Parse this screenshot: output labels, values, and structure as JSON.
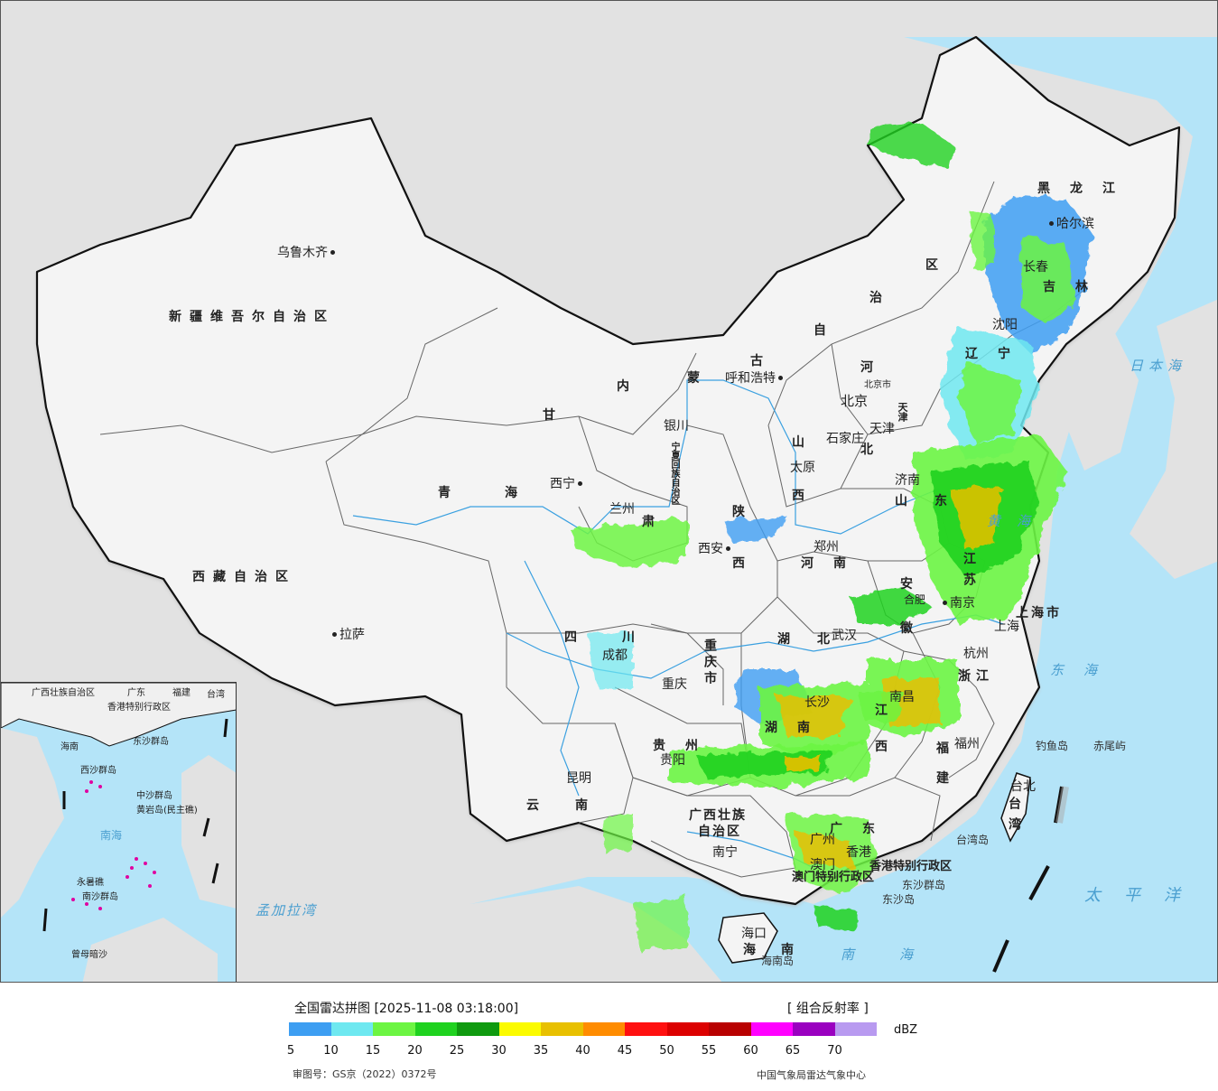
{
  "legend": {
    "title": "全国雷达拼图 [2025-11-08 03:18:00]",
    "product": "[ 组合反射率 ]",
    "unit": "dBZ",
    "approval": "审图号：GS京（2022）0372号",
    "agency": "中国气象局雷达气象中心",
    "ticks": [
      "5",
      "10",
      "15",
      "20",
      "25",
      "30",
      "35",
      "40",
      "45",
      "50",
      "55",
      "60",
      "65",
      "70"
    ],
    "colors": [
      "#3d9ef2",
      "#6ee8f0",
      "#6cf542",
      "#1fd21f",
      "#0f9a0f",
      "#fbfb00",
      "#e8c000",
      "#ff8c00",
      "#ff1010",
      "#dc0000",
      "#b80000",
      "#ff00ff",
      "#9a00c0",
      "#b89af0"
    ]
  },
  "map_colors": {
    "sea": "#b4e4f8",
    "land": "#f2f2f2",
    "outside": "#e2e2e2",
    "border": "#111111",
    "river": "#3aa0e0"
  },
  "provinces": {
    "xinjiang": "新疆维吾尔自治区",
    "xizang": "西藏自治区",
    "qinghai": "青海",
    "gansu": "甘",
    "gansu2": "肃",
    "neimenggu_1": "内",
    "neimenggu_2": "蒙",
    "neimenggu_3": "古",
    "neimenggu_4": "自",
    "neimenggu_5": "治",
    "neimenggu_6": "区",
    "heilongjiang": "黑龙江",
    "jilin": "吉林",
    "liaoning": "辽宁",
    "hebei_1": "河",
    "hebei_2": "北",
    "shanxi_1": "山",
    "shanxi_2": "西",
    "shandong_1": "山",
    "shandong_2": "东",
    "shaanxi_1": "陕",
    "shaanxi_2": "西",
    "henan": "河南",
    "ningxia": "宁夏回族自治区",
    "sichuan": "四川",
    "chongqing": "重庆市",
    "hubei": "湖北",
    "anhui_1": "安",
    "anhui_2": "徽",
    "jiangsu": "江苏",
    "shanghai": "上海市",
    "zhejiang": "浙江",
    "hunan": "湖南",
    "jiangxi_1": "江",
    "jiangxi_2": "西",
    "guizhou": "贵州",
    "yunnan": "云南",
    "guangxi_1": "广西壮族",
    "guangxi_2": "自治区",
    "guangdong": "广东",
    "fujian_1": "福",
    "fujian_2": "建",
    "taiwan": "台湾",
    "hainan_1": "海",
    "hainan_2": "南",
    "beijing": "北京",
    "tianjin": "天津",
    "hongkong": "香港特别行政区",
    "macau": "澳门特别行政区"
  },
  "cities": {
    "urumqi": "乌鲁木齐",
    "lhasa": "拉萨",
    "xining": "西宁",
    "lanzhou": "兰州",
    "yinchuan": "银川",
    "hohhot": "呼和浩特",
    "harbin": "哈尔滨",
    "changchun": "长春",
    "shenyang": "沈阳",
    "beijing": "北京",
    "tianjin": "天津",
    "shijiazhuang": "石家庄",
    "taiyuan": "太原",
    "jinan": "济南",
    "xian": "西安",
    "zhengzhou": "郑州",
    "hefei": "合肥",
    "nanjing": "南京",
    "shanghai": "上海",
    "hangzhou": "杭州",
    "wuhan": "武汉",
    "chengdu": "成都",
    "chongqing": "重庆",
    "changsha": "长沙",
    "nanchang": "南昌",
    "guiyang": "贵阳",
    "kunming": "昆明",
    "nanning": "南宁",
    "guangzhou": "广州",
    "hongkong": "香港",
    "macau": "澳门",
    "fuzhou": "福州",
    "taipei": "台北",
    "haikou": "海口",
    "beijing_small": "北京市"
  },
  "seas_islands": {
    "japan_sea": "日本海",
    "yellow_sea": "黄海",
    "east_sea": "东海",
    "pacific": "太平洋",
    "south_sea": "南海",
    "bengal": "孟加拉湾",
    "diaoyu": "钓鱼岛",
    "chiwei": "赤尾屿",
    "taiwan_island": "台湾岛",
    "dongsha_islands": "东沙群岛",
    "dongsha_island": "东沙岛",
    "hainan_island": "海南岛"
  },
  "inset": {
    "guangxi": "广西壮族自治区",
    "guangdong": "广东",
    "fujian": "福建",
    "taiwan": "台湾",
    "hk": "香港特别行政区",
    "dongsha": "东沙群岛",
    "hainan": "海南",
    "xisha": "西沙群岛",
    "zhongsha": "中沙群岛",
    "huangyan": "黄岩岛(民主礁)",
    "nanhai": "南海",
    "yongshu": "永暑礁",
    "nansha": "南沙群岛",
    "zengmu": "曾母暗沙"
  }
}
